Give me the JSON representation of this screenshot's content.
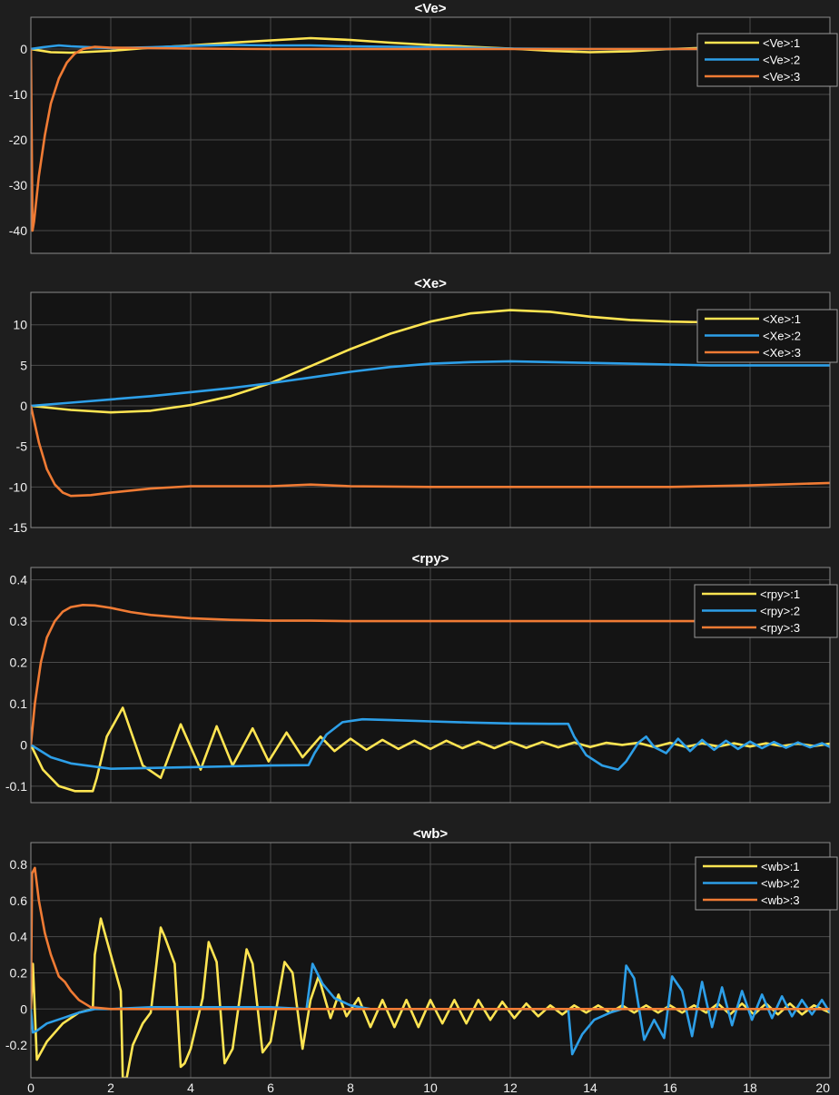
{
  "colors": {
    "background": "#1e1e1e",
    "axes_face": "#141414",
    "grid": "#4a4a4a",
    "axes_edge": "#8a8a8a",
    "text": "#f0f0f0",
    "series_1": "#ffe552",
    "series_2": "#2d9fe8",
    "series_3": "#f07b34"
  },
  "chart_data": [
    {
      "type": "line",
      "title": "<Ve>",
      "xlim": [
        0,
        20
      ],
      "ylim": [
        -45,
        7
      ],
      "grid": true,
      "legend_position": "top-right",
      "xticks": [
        0,
        2,
        4,
        6,
        8,
        10,
        12,
        14,
        16,
        18,
        20
      ],
      "show_xticklabels": false,
      "yticks": [
        0,
        -10,
        -20,
        -30,
        -40
      ],
      "series": [
        {
          "name": "<Ve>:1",
          "x": [
            0,
            0.5,
            1,
            2,
            3,
            4,
            5,
            6,
            7,
            8,
            9,
            10,
            11,
            12,
            13,
            14,
            15,
            16,
            17,
            18,
            19,
            20
          ],
          "y": [
            0,
            -0.7,
            -0.8,
            -0.4,
            0.3,
            0.8,
            1.4,
            1.9,
            2.4,
            2.0,
            1.4,
            0.9,
            0.5,
            0.1,
            -0.4,
            -0.7,
            -0.5,
            0,
            0.3,
            0.3,
            0.2,
            0
          ]
        },
        {
          "name": "<Ve>:2",
          "x": [
            0,
            0.3,
            0.7,
            1,
            2,
            3,
            4,
            5,
            6,
            7,
            8,
            10,
            12,
            14,
            16,
            18,
            20
          ],
          "y": [
            0,
            0.4,
            0.8,
            0.6,
            0.2,
            0.4,
            0.7,
            0.9,
            0.8,
            0.8,
            0.6,
            0.4,
            0.1,
            0,
            0,
            0,
            0
          ]
        },
        {
          "name": "<Ve>:3",
          "x": [
            0,
            0.04,
            0.08,
            0.2,
            0.35,
            0.5,
            0.7,
            0.9,
            1.1,
            1.3,
            1.6,
            2,
            3,
            4,
            6,
            8,
            10,
            12,
            14,
            16,
            18,
            20
          ],
          "y": [
            0,
            -40,
            -38,
            -28,
            -19,
            -12,
            -6.5,
            -3,
            -1,
            0,
            0.5,
            0.3,
            0.2,
            0.1,
            0,
            0,
            0,
            0,
            0,
            0,
            0,
            0
          ]
        }
      ]
    },
    {
      "type": "line",
      "title": "<Xe>",
      "xlim": [
        0,
        20
      ],
      "ylim": [
        -15,
        14
      ],
      "grid": true,
      "legend_position": "top-right",
      "xticks": [
        0,
        2,
        4,
        6,
        8,
        10,
        12,
        14,
        16,
        18,
        20
      ],
      "show_xticklabels": false,
      "yticks": [
        10,
        5,
        0,
        -5,
        -10,
        -15
      ],
      "series": [
        {
          "name": "<Xe>:1",
          "x": [
            0,
            1,
            2,
            3,
            4,
            5,
            6,
            7,
            8,
            9,
            10,
            11,
            12,
            13,
            14,
            15,
            16,
            17,
            18,
            19,
            20
          ],
          "y": [
            0,
            -0.5,
            -0.8,
            -0.6,
            0.1,
            1.2,
            2.8,
            4.9,
            7.0,
            8.9,
            10.4,
            11.4,
            11.8,
            11.6,
            11.0,
            10.6,
            10.4,
            10.3,
            10.2,
            10.1,
            10.0
          ]
        },
        {
          "name": "<Xe>:2",
          "x": [
            0,
            1,
            2,
            3,
            4,
            5,
            6,
            7,
            8,
            9,
            10,
            11,
            12,
            13,
            14,
            15,
            16,
            17,
            18,
            19,
            20
          ],
          "y": [
            0,
            0.4,
            0.8,
            1.2,
            1.7,
            2.2,
            2.8,
            3.5,
            4.2,
            4.8,
            5.2,
            5.4,
            5.5,
            5.4,
            5.3,
            5.2,
            5.1,
            5.0,
            5.0,
            5.0,
            5.0
          ]
        },
        {
          "name": "<Xe>:3",
          "x": [
            0,
            0.2,
            0.4,
            0.6,
            0.8,
            1,
            1.5,
            2,
            3,
            4,
            5,
            6,
            7,
            8,
            10,
            12,
            14,
            16,
            18,
            20
          ],
          "y": [
            0,
            -4.5,
            -7.8,
            -9.7,
            -10.7,
            -11.1,
            -11.0,
            -10.7,
            -10.2,
            -9.9,
            -9.9,
            -9.9,
            -9.7,
            -9.9,
            -10.0,
            -10.0,
            -10.0,
            -10.0,
            -9.8,
            -9.5
          ]
        }
      ]
    },
    {
      "type": "line",
      "title": "<rpy>",
      "xlim": [
        0,
        20
      ],
      "ylim": [
        -0.14,
        0.43
      ],
      "grid": true,
      "legend_position": "top-right",
      "xticks": [
        0,
        2,
        4,
        6,
        8,
        10,
        12,
        14,
        16,
        18,
        20
      ],
      "show_xticklabels": false,
      "yticks": [
        0.4,
        0.3,
        0.2,
        0.1,
        0,
        -0.1
      ],
      "series": [
        {
          "name": "<rpy>:1",
          "x": [
            0,
            0.3,
            0.7,
            1.1,
            1.55,
            1.65,
            1.9,
            2.3,
            2.55,
            2.8,
            3.25,
            3.75,
            4.25,
            4.65,
            5.05,
            5.55,
            5.95,
            6.4,
            6.8,
            7.25,
            7.6,
            8.0,
            8.4,
            8.8,
            9.2,
            9.6,
            10.0,
            10.4,
            10.8,
            11.2,
            11.6,
            12.0,
            12.4,
            12.8,
            13.2,
            13.6,
            14.0,
            14.4,
            14.8,
            15.2,
            15.6,
            16.0,
            16.4,
            16.8,
            17.2,
            17.6,
            18.0,
            18.4,
            18.8,
            19.2,
            19.6,
            20.0
          ],
          "y": [
            0,
            -0.06,
            -0.1,
            -0.112,
            -0.112,
            -0.08,
            0.02,
            0.09,
            0.02,
            -0.05,
            -0.08,
            0.05,
            -0.06,
            0.045,
            -0.05,
            0.04,
            -0.04,
            0.03,
            -0.03,
            0.02,
            -0.015,
            0.015,
            -0.012,
            0.012,
            -0.01,
            0.01,
            -0.01,
            0.01,
            -0.008,
            0.008,
            -0.008,
            0.008,
            -0.007,
            0.007,
            -0.006,
            0.006,
            -0.005,
            0.005,
            0,
            0.005,
            -0.005,
            0.005,
            -0.005,
            0.004,
            -0.004,
            0.004,
            -0.004,
            0.004,
            -0.003,
            0.003,
            -0.003,
            0.003
          ]
        },
        {
          "name": "<rpy>:2",
          "x": [
            0,
            0.5,
            1,
            2,
            3,
            4,
            5,
            6,
            6.95,
            7.1,
            7.4,
            7.8,
            8.3,
            9,
            10,
            11,
            12,
            13,
            13.45,
            13.6,
            13.9,
            14.3,
            14.7,
            14.9,
            15.2,
            15.4,
            15.6,
            15.9,
            16.2,
            16.5,
            16.8,
            17.1,
            17.4,
            17.7,
            18.0,
            18.3,
            18.6,
            18.9,
            19.2,
            19.5,
            19.8,
            20
          ],
          "y": [
            0,
            -0.03,
            -0.045,
            -0.058,
            -0.056,
            -0.054,
            -0.052,
            -0.05,
            -0.049,
            -0.02,
            0.025,
            0.055,
            0.062,
            0.06,
            0.057,
            0.054,
            0.052,
            0.051,
            0.051,
            0.02,
            -0.025,
            -0.05,
            -0.06,
            -0.04,
            0.005,
            0.02,
            -0.005,
            -0.02,
            0.015,
            -0.015,
            0.012,
            -0.012,
            0.01,
            -0.01,
            0.008,
            -0.008,
            0.007,
            -0.007,
            0.006,
            -0.006,
            0.004,
            -0.005
          ]
        },
        {
          "name": "<rpy>:3",
          "x": [
            0,
            0.1,
            0.25,
            0.4,
            0.6,
            0.8,
            1.0,
            1.3,
            1.6,
            2.0,
            2.5,
            3.0,
            4.0,
            5.0,
            6.0,
            7.0,
            8.0,
            10.0,
            12.0,
            14.0,
            16.0,
            18.0,
            20.0
          ],
          "y": [
            0,
            0.1,
            0.2,
            0.26,
            0.3,
            0.323,
            0.334,
            0.339,
            0.338,
            0.332,
            0.322,
            0.315,
            0.307,
            0.303,
            0.301,
            0.301,
            0.3,
            0.3,
            0.3,
            0.3,
            0.3,
            0.3,
            0.3
          ]
        }
      ]
    },
    {
      "type": "line",
      "title": "<wb>",
      "xlim": [
        0,
        20
      ],
      "ylim": [
        -0.38,
        0.92
      ],
      "grid": true,
      "legend_position": "top-right",
      "xticks": [
        0,
        2,
        4,
        6,
        8,
        10,
        12,
        14,
        16,
        18,
        20
      ],
      "show_xticklabels": true,
      "yticks": [
        0.8,
        0.6,
        0.4,
        0.2,
        0,
        -0.2
      ],
      "series": [
        {
          "name": "<wb>:1",
          "x": [
            0,
            0.05,
            0.15,
            0.4,
            0.8,
            1.2,
            1.55,
            1.6,
            1.75,
            2.0,
            2.25,
            2.3,
            2.4,
            2.55,
            2.8,
            3.0,
            3.25,
            3.35,
            3.6,
            3.75,
            3.85,
            4.0,
            4.3,
            4.45,
            4.65,
            4.85,
            5.05,
            5.4,
            5.55,
            5.8,
            6.0,
            6.35,
            6.55,
            6.8,
            7.0,
            7.2,
            7.5,
            7.7,
            7.9,
            8.2,
            8.5,
            8.8,
            9.1,
            9.4,
            9.7,
            10.0,
            10.3,
            10.6,
            10.9,
            11.2,
            11.5,
            11.8,
            12.1,
            12.4,
            12.7,
            13.0,
            13.3,
            13.6,
            13.9,
            14.2,
            14.5,
            14.8,
            15.1,
            15.4,
            15.7,
            16.0,
            16.3,
            16.6,
            16.9,
            17.2,
            17.5,
            17.8,
            18.1,
            18.4,
            18.7,
            19.0,
            19.3,
            19.6,
            20.0
          ],
          "y": [
            0,
            0.25,
            -0.28,
            -0.18,
            -0.08,
            -0.02,
            0.0,
            0.3,
            0.5,
            0.3,
            0.1,
            -0.38,
            -0.38,
            -0.2,
            -0.08,
            -0.02,
            0.45,
            0.4,
            0.25,
            -0.32,
            -0.3,
            -0.22,
            0.06,
            0.37,
            0.26,
            -0.3,
            -0.22,
            0.33,
            0.25,
            -0.24,
            -0.18,
            0.26,
            0.2,
            -0.22,
            0.05,
            0.18,
            -0.05,
            0.08,
            -0.04,
            0.06,
            -0.1,
            0.05,
            -0.1,
            0.05,
            -0.1,
            0.05,
            -0.08,
            0.05,
            -0.08,
            0.05,
            -0.06,
            0.04,
            -0.05,
            0.03,
            -0.04,
            0.02,
            -0.03,
            0.02,
            -0.02,
            0.02,
            -0.02,
            0.02,
            -0.02,
            0.02,
            -0.02,
            0.02,
            -0.02,
            0.02,
            -0.02,
            0.03,
            -0.03,
            0.03,
            -0.03,
            0.03,
            -0.03,
            0.03,
            -0.03,
            0.02,
            -0.02
          ]
        },
        {
          "name": "<wb>:2",
          "x": [
            0,
            0.05,
            0.15,
            0.4,
            0.8,
            1.2,
            1.6,
            2.0,
            3.0,
            4.0,
            5.0,
            6.0,
            6.9,
            7.05,
            7.3,
            7.6,
            8.0,
            8.5,
            9.0,
            10.0,
            11.0,
            12.0,
            13.0,
            13.45,
            13.55,
            13.8,
            14.1,
            14.5,
            14.8,
            14.9,
            15.1,
            15.35,
            15.6,
            15.85,
            16.05,
            16.3,
            16.55,
            16.8,
            17.05,
            17.3,
            17.55,
            17.8,
            18.05,
            18.3,
            18.55,
            18.8,
            19.05,
            19.3,
            19.55,
            19.8,
            20.0
          ],
          "y": [
            0,
            -0.13,
            -0.12,
            -0.08,
            -0.05,
            -0.02,
            0.0,
            0.0,
            0.01,
            0.01,
            0.01,
            0.01,
            0.0,
            0.25,
            0.14,
            0.06,
            0.02,
            0.0,
            0.0,
            0.0,
            0.0,
            0.0,
            0.0,
            0.0,
            -0.25,
            -0.14,
            -0.06,
            -0.02,
            0.0,
            0.24,
            0.17,
            -0.17,
            -0.06,
            -0.16,
            0.18,
            0.1,
            -0.15,
            0.15,
            -0.1,
            0.12,
            -0.09,
            0.1,
            -0.06,
            0.08,
            -0.05,
            0.07,
            -0.04,
            0.05,
            -0.03,
            0.05,
            -0.02
          ]
        },
        {
          "name": "<wb>:3",
          "x": [
            0,
            0.03,
            0.1,
            0.2,
            0.35,
            0.5,
            0.7,
            0.85,
            1.0,
            1.2,
            1.5,
            2.0,
            3.0,
            4.0,
            6.0,
            8.0,
            10.0,
            12.0,
            14.0,
            16.0,
            18.0,
            20.0
          ],
          "y": [
            0,
            0.75,
            0.78,
            0.6,
            0.42,
            0.3,
            0.18,
            0.15,
            0.1,
            0.05,
            0.01,
            0.0,
            0.0,
            0.0,
            0.0,
            0.0,
            0.0,
            0.0,
            0.0,
            0.0,
            0.0,
            0.0
          ]
        }
      ]
    }
  ]
}
